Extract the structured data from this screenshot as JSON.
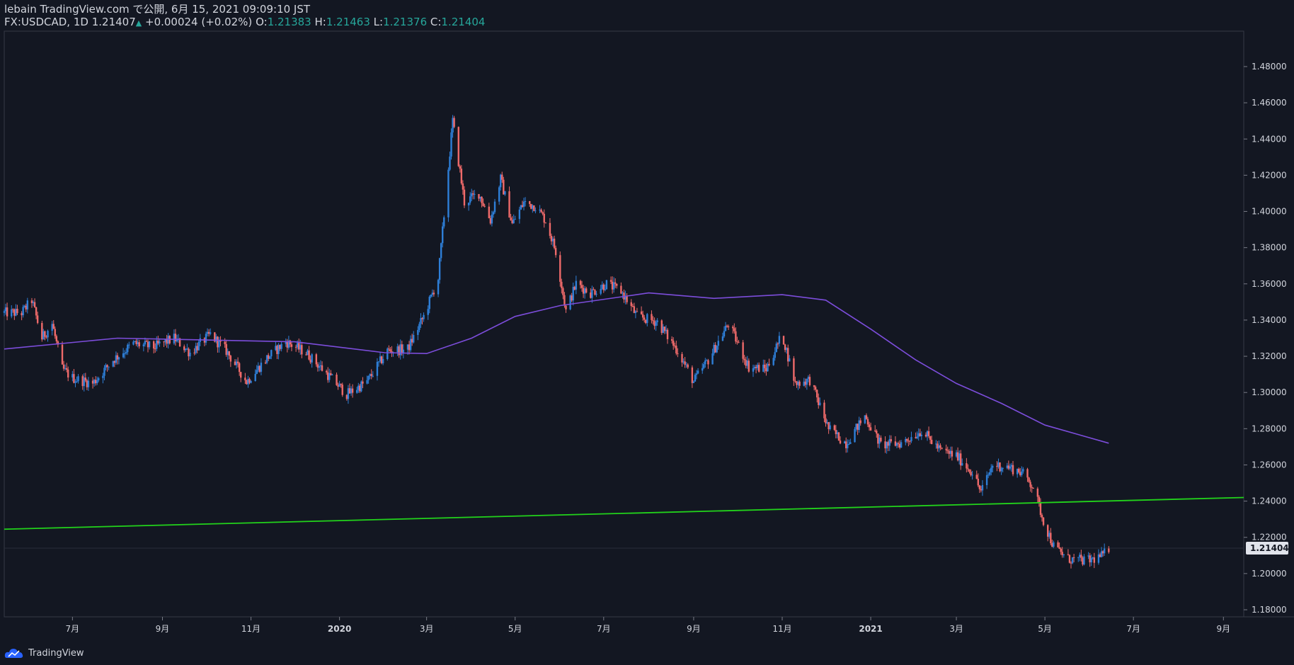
{
  "header": {
    "published": "lebain TradingView.com で公開, 6月 15, 2021 09:09:10 JST",
    "symbol": "FX:USDCAD, 1D",
    "last": "1.21407",
    "change": "+0.00024 (+0.02%)",
    "o_label": "O:",
    "o_value": "1.21383",
    "h_label": "H:",
    "h_value": "1.21463",
    "l_label": "L:",
    "l_value": "1.21376",
    "c_label": "C:",
    "c_value": "1.21404",
    "up_icon": "triangle-up-icon"
  },
  "footer": {
    "brand": "TradingView",
    "logo_icon": "tradingview-cloud-logo-icon"
  },
  "colors": {
    "background": "#131722",
    "up": "#2e7fd8",
    "down": "#ef6a6a",
    "ma": "#7c4ddb",
    "trendline": "#22d31b",
    "axis_text": "#d1d4dc",
    "price_tag": "#e0e3eb"
  },
  "chart_data": {
    "type": "candlestick",
    "symbol": "FX:USDCAD",
    "timeframe": "1D",
    "ylim": [
      1.17,
      1.49
    ],
    "y_ticks": [
      "1.48000",
      "1.46000",
      "1.44000",
      "1.42000",
      "1.40000",
      "1.38000",
      "1.36000",
      "1.34000",
      "1.32000",
      "1.30000",
      "1.28000",
      "1.26000",
      "1.24000",
      "1.22000",
      "1.20000",
      "1.18000"
    ],
    "x_tick_labels": [
      {
        "label": "7月",
        "date": "2019-07-01",
        "bold": false
      },
      {
        "label": "9月",
        "date": "2019-09-01",
        "bold": false
      },
      {
        "label": "11月",
        "date": "2019-11-01",
        "bold": false
      },
      {
        "label": "2020",
        "date": "2020-01-01",
        "bold": true
      },
      {
        "label": "3月",
        "date": "2020-03-01",
        "bold": false
      },
      {
        "label": "5月",
        "date": "2020-05-01",
        "bold": false
      },
      {
        "label": "7月",
        "date": "2020-07-01",
        "bold": false
      },
      {
        "label": "9月",
        "date": "2020-09-01",
        "bold": false
      },
      {
        "label": "11月",
        "date": "2020-11-01",
        "bold": false
      },
      {
        "label": "2021",
        "date": "2021-01-01",
        "bold": true
      },
      {
        "label": "3月",
        "date": "2021-03-01",
        "bold": false
      },
      {
        "label": "5月",
        "date": "2021-05-01",
        "bold": false
      },
      {
        "label": "7月",
        "date": "2021-07-01",
        "bold": false
      },
      {
        "label": "9月",
        "date": "2021-09-01",
        "bold": false
      }
    ],
    "x_range": [
      "2019-05-15",
      "2021-09-15"
    ],
    "last_price": "1.21404",
    "close_path": [
      [
        "2019-05-15",
        1.344
      ],
      [
        "2019-05-27",
        1.344
      ],
      [
        "2019-06-03",
        1.351
      ],
      [
        "2019-06-10",
        1.33
      ],
      [
        "2019-06-17",
        1.338
      ],
      [
        "2019-06-24",
        1.313
      ],
      [
        "2019-07-01",
        1.308
      ],
      [
        "2019-07-15",
        1.305
      ],
      [
        "2019-07-29",
        1.318
      ],
      [
        "2019-08-12",
        1.327
      ],
      [
        "2019-08-26",
        1.325
      ],
      [
        "2019-09-09",
        1.33
      ],
      [
        "2019-09-20",
        1.322
      ],
      [
        "2019-10-04",
        1.332
      ],
      [
        "2019-10-15",
        1.323
      ],
      [
        "2019-10-29",
        1.306
      ],
      [
        "2019-11-12",
        1.319
      ],
      [
        "2019-11-25",
        1.328
      ],
      [
        "2019-12-09",
        1.322
      ],
      [
        "2019-12-20",
        1.313
      ],
      [
        "2020-01-06",
        1.299
      ],
      [
        "2020-01-20",
        1.306
      ],
      [
        "2020-02-03",
        1.323
      ],
      [
        "2020-02-17",
        1.324
      ],
      [
        "2020-02-28",
        1.342
      ],
      [
        "2020-03-09",
        1.363
      ],
      [
        "2020-03-19",
        1.45
      ],
      [
        "2020-03-27",
        1.405
      ],
      [
        "2020-04-06",
        1.41
      ],
      [
        "2020-04-14",
        1.395
      ],
      [
        "2020-04-21",
        1.418
      ],
      [
        "2020-04-29",
        1.393
      ],
      [
        "2020-05-07",
        1.405
      ],
      [
        "2020-05-15",
        1.403
      ],
      [
        "2020-05-22",
        1.395
      ],
      [
        "2020-05-29",
        1.378
      ],
      [
        "2020-06-05",
        1.345
      ],
      [
        "2020-06-12",
        1.36
      ],
      [
        "2020-06-22",
        1.355
      ],
      [
        "2020-07-03",
        1.36
      ],
      [
        "2020-07-13",
        1.356
      ],
      [
        "2020-07-24",
        1.342
      ],
      [
        "2020-08-07",
        1.339
      ],
      [
        "2020-08-21",
        1.323
      ],
      [
        "2020-09-01",
        1.306
      ],
      [
        "2020-09-11",
        1.318
      ],
      [
        "2020-09-25",
        1.338
      ],
      [
        "2020-10-09",
        1.314
      ],
      [
        "2020-10-21",
        1.313
      ],
      [
        "2020-11-01",
        1.332
      ],
      [
        "2020-11-10",
        1.305
      ],
      [
        "2020-11-20",
        1.307
      ],
      [
        "2020-12-03",
        1.28
      ],
      [
        "2020-12-15",
        1.272
      ],
      [
        "2020-12-28",
        1.287
      ],
      [
        "2021-01-08",
        1.271
      ],
      [
        "2021-01-22",
        1.272
      ],
      [
        "2021-02-05",
        1.279
      ],
      [
        "2021-02-18",
        1.268
      ],
      [
        "2021-03-01",
        1.265
      ],
      [
        "2021-03-12",
        1.256
      ],
      [
        "2021-03-18",
        1.245
      ],
      [
        "2021-03-26",
        1.26
      ],
      [
        "2021-04-05",
        1.259
      ],
      [
        "2021-04-15",
        1.256
      ],
      [
        "2021-04-23",
        1.248
      ],
      [
        "2021-04-30",
        1.229
      ],
      [
        "2021-05-07",
        1.215
      ],
      [
        "2021-05-17",
        1.208
      ],
      [
        "2021-05-31",
        1.207
      ],
      [
        "2021-06-10",
        1.21
      ],
      [
        "2021-06-14",
        1.21404
      ]
    ],
    "series": [
      {
        "name": "",
        "type": "moving_average",
        "points": [
          [
            "2019-05-15",
            1.324
          ],
          [
            "2019-08-01",
            1.33
          ],
          [
            "2019-10-01",
            1.329
          ],
          [
            "2019-12-01",
            1.328
          ],
          [
            "2020-02-01",
            1.322
          ],
          [
            "2020-03-01",
            1.3215
          ],
          [
            "2020-04-01",
            1.33
          ],
          [
            "2020-05-01",
            1.342
          ],
          [
            "2020-06-01",
            1.348
          ],
          [
            "2020-08-01",
            1.355
          ],
          [
            "2020-09-15",
            1.352
          ],
          [
            "2020-11-01",
            1.354
          ],
          [
            "2020-12-01",
            1.351
          ],
          [
            "2021-01-01",
            1.335
          ],
          [
            "2021-02-01",
            1.318
          ],
          [
            "2021-03-01",
            1.305
          ],
          [
            "2021-04-01",
            1.294
          ],
          [
            "2021-05-01",
            1.282
          ],
          [
            "2021-06-14",
            1.272
          ]
        ]
      },
      {
        "name": "",
        "type": "trendline",
        "points": [
          [
            "2019-05-15",
            1.2245
          ],
          [
            "2021-09-15",
            1.242
          ]
        ]
      }
    ]
  }
}
